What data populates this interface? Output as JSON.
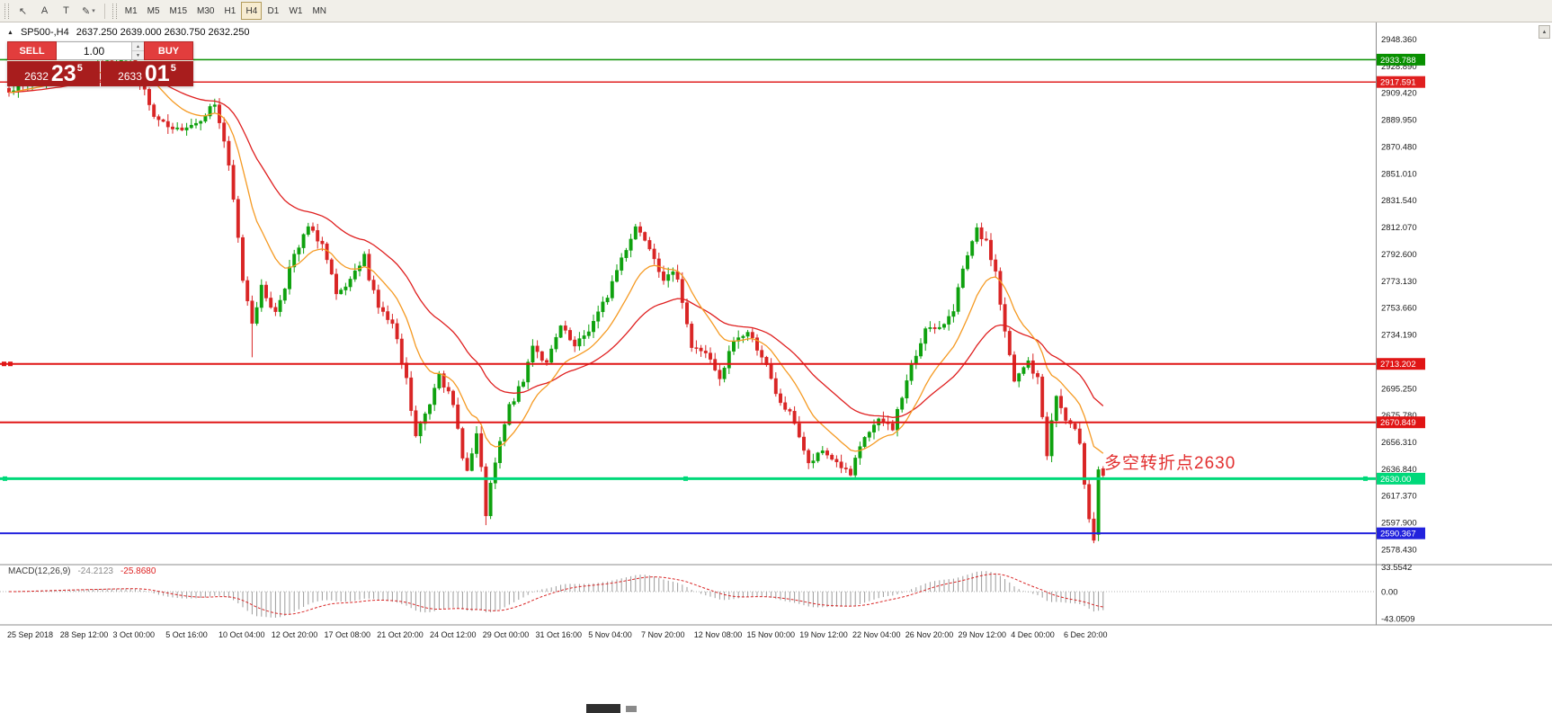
{
  "toolbar": {
    "icons": [
      {
        "name": "cursor",
        "glyph": "↖"
      },
      {
        "name": "text-annotation",
        "glyph": "A"
      },
      {
        "name": "text-label",
        "glyph": "T"
      },
      {
        "name": "draw-objects",
        "glyph": "✎"
      }
    ],
    "caret": "▾",
    "timeframes": [
      {
        "label": "M1"
      },
      {
        "label": "M5"
      },
      {
        "label": "M15"
      },
      {
        "label": "M30"
      },
      {
        "label": "H1"
      },
      {
        "label": "H4",
        "active": true
      },
      {
        "label": "D1"
      },
      {
        "label": "W1"
      },
      {
        "label": "MN"
      }
    ]
  },
  "chart": {
    "info_marker": "▲",
    "symbol_period": "SP500-,H4",
    "ohlc_text": "2637.250 2639.000 2630.750 2632.250",
    "trade_panel": {
      "sell_label": "SELL",
      "buy_label": "BUY",
      "volume": "1.00",
      "spin_up": "▲",
      "spin_down": "▼",
      "bid": {
        "prefix": "2632",
        "big": "23",
        "sup": "5"
      },
      "ask": {
        "prefix": "2633",
        "big": "01",
        "sup": "5"
      }
    },
    "annotation": {
      "text": "多空转折点2630",
      "color": "#e22f2f"
    },
    "colors": {
      "up": "#0ea10e",
      "down": "#d92525",
      "ma_fast": "#f59a23",
      "ma_slow": "#df1f1f",
      "hist": "#9b9b9b",
      "signal": "#d92525",
      "badge_text": "#ffffff"
    },
    "hlines": [
      {
        "price": 2933.788,
        "label": "2933.788",
        "color": "#089000",
        "width": 1.5
      },
      {
        "price": 2917.591,
        "label": "2917.591",
        "color": "#e02020",
        "width": 1.5
      },
      {
        "price": 2713.202,
        "label": "2713.202",
        "color": "#e01515",
        "width": 2,
        "handles": "left"
      },
      {
        "price": 2670.849,
        "label": "2670.849",
        "color": "#e01515",
        "width": 2
      },
      {
        "price": 2630.0,
        "label": "2630.00",
        "color": "#00d97a",
        "width": 3,
        "handles": "ends"
      },
      {
        "price": 2590.367,
        "label": "2590.367",
        "color": "#2222dd",
        "width": 2
      }
    ],
    "y_axis": {
      "top_price": 2948.36,
      "step": 19.47,
      "labels": [
        "2948.360",
        "2928.890",
        "2909.420",
        "2889.950",
        "2870.480",
        "2851.010",
        "2831.540",
        "2812.070",
        "2792.600",
        "2773.130",
        "2753.660",
        "2734.190",
        "2714.720",
        "2695.250",
        "2675.780",
        "2656.310",
        "2636.840",
        "2617.370",
        "2597.900",
        "2578.430"
      ]
    },
    "x_axis": {
      "labels": [
        "25 Sep 2018",
        "28 Sep 12:00",
        "3 Oct 00:00",
        "5 Oct 16:00",
        "10 Oct 04:00",
        "12 Oct 20:00",
        "17 Oct 08:00",
        "21 Oct 20:00",
        "24 Oct 12:00",
        "29 Oct 00:00",
        "31 Oct 16:00",
        "5 Nov 04:00",
        "7 Nov 20:00",
        "12 Nov 08:00",
        "15 Nov 00:00",
        "19 Nov 12:00",
        "22 Nov 04:00",
        "26 Nov 20:00",
        "29 Nov 12:00",
        "4 Dec 00:00",
        "6 Dec 20:00"
      ]
    },
    "series": {
      "type": "candlestick",
      "count": 235,
      "waypoints": [
        [
          0,
          2912
        ],
        [
          8,
          2920
        ],
        [
          18,
          2928
        ],
        [
          26,
          2937
        ],
        [
          28,
          2918
        ],
        [
          31,
          2892
        ],
        [
          35,
          2882
        ],
        [
          40,
          2888
        ],
        [
          44,
          2902
        ],
        [
          46,
          2875
        ],
        [
          48,
          2830
        ],
        [
          50,
          2775
        ],
        [
          52,
          2745
        ],
        [
          54,
          2768
        ],
        [
          57,
          2750
        ],
        [
          60,
          2782
        ],
        [
          64,
          2812
        ],
        [
          67,
          2800
        ],
        [
          70,
          2762
        ],
        [
          73,
          2772
        ],
        [
          76,
          2790
        ],
        [
          79,
          2755
        ],
        [
          82,
          2740
        ],
        [
          85,
          2700
        ],
        [
          87,
          2660
        ],
        [
          90,
          2685
        ],
        [
          92,
          2710
        ],
        [
          95,
          2680
        ],
        [
          98,
          2635
        ],
        [
          100,
          2660
        ],
        [
          102,
          2605
        ],
        [
          104,
          2640
        ],
        [
          107,
          2682
        ],
        [
          110,
          2700
        ],
        [
          112,
          2728
        ],
        [
          115,
          2712
        ],
        [
          118,
          2740
        ],
        [
          121,
          2725
        ],
        [
          124,
          2738
        ],
        [
          127,
          2755
        ],
        [
          131,
          2790
        ],
        [
          134,
          2813
        ],
        [
          137,
          2800
        ],
        [
          140,
          2775
        ],
        [
          143,
          2780
        ],
        [
          146,
          2725
        ],
        [
          149,
          2722
        ],
        [
          152,
          2700
        ],
        [
          155,
          2730
        ],
        [
          158,
          2736
        ],
        [
          161,
          2720
        ],
        [
          164,
          2690
        ],
        [
          168,
          2672
        ],
        [
          171,
          2640
        ],
        [
          174,
          2650
        ],
        [
          177,
          2642
        ],
        [
          180,
          2632
        ],
        [
          183,
          2660
        ],
        [
          186,
          2672
        ],
        [
          189,
          2668
        ],
        [
          192,
          2700
        ],
        [
          196,
          2740
        ],
        [
          199,
          2737
        ],
        [
          202,
          2755
        ],
        [
          205,
          2790
        ],
        [
          207,
          2810
        ],
        [
          209,
          2800
        ],
        [
          211,
          2780
        ],
        [
          213,
          2735
        ],
        [
          215,
          2700
        ],
        [
          218,
          2715
        ],
        [
          220,
          2700
        ],
        [
          222,
          2650
        ],
        [
          224,
          2690
        ],
        [
          226,
          2672
        ],
        [
          229,
          2660
        ],
        [
          231,
          2602
        ],
        [
          232,
          2585
        ],
        [
          233,
          2637
        ],
        [
          234,
          2632
        ]
      ],
      "overrides": [
        {
          "i": 26,
          "h": 2941.0
        },
        {
          "i": 52,
          "l": 2718.0
        },
        {
          "i": 102,
          "l": 2596.3
        },
        {
          "i": 232,
          "l": 2583.2
        },
        {
          "i": 233,
          "o": 2589.5,
          "c": 2636.5
        },
        {
          "i": 234,
          "o": 2637.25,
          "h": 2639.0,
          "l": 2630.75,
          "c": 2632.25
        }
      ]
    }
  },
  "macd": {
    "name": "MACD(12,26,9)",
    "value_main": "-24.2123",
    "value_signal": "-25.8680",
    "axis_labels": [
      "33.5542",
      "0.00",
      "-43.0509"
    ]
  },
  "scrollbar": {
    "up_glyph": "▲"
  }
}
